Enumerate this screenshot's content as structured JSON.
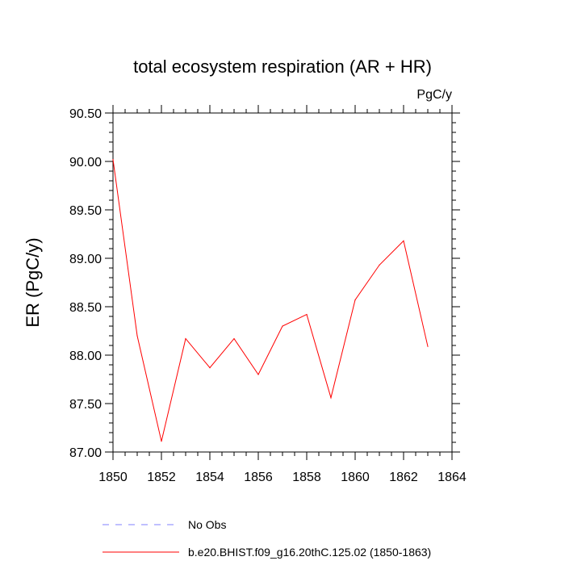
{
  "chart_data": {
    "type": "line",
    "title": "total ecosystem respiration (AR + HR)",
    "units": "PgC/y",
    "xlabel": "",
    "ylabel": "ER  (PgC/y)",
    "xlim": [
      1850,
      1864
    ],
    "ylim": [
      87.0,
      90.5
    ],
    "x_ticks": [
      1850,
      1852,
      1854,
      1856,
      1858,
      1860,
      1862,
      1864
    ],
    "x_tick_labels": [
      "1850",
      "1852",
      "1854",
      "1856",
      "1858",
      "1860",
      "1862",
      "1864"
    ],
    "y_ticks": [
      87.0,
      87.5,
      88.0,
      88.5,
      89.0,
      89.5,
      90.0,
      90.5
    ],
    "y_tick_labels": [
      "87.00",
      "87.50",
      "88.00",
      "88.50",
      "89.00",
      "89.50",
      "90.00",
      "90.50"
    ],
    "grid": false,
    "series": [
      {
        "name": "b.e20.BHIST.f09_g16.20thC.125.02 (1850-1863)",
        "color": "#ff0000",
        "style": "solid",
        "x": [
          1850,
          1851,
          1852,
          1853,
          1854,
          1855,
          1856,
          1857,
          1858,
          1859,
          1860,
          1861,
          1862,
          1863
        ],
        "y": [
          90.02,
          88.2,
          87.11,
          88.17,
          87.87,
          88.17,
          87.8,
          88.3,
          88.42,
          87.56,
          88.57,
          88.93,
          89.18,
          88.09
        ]
      }
    ],
    "legend": {
      "placement": "bottom-center",
      "entries": [
        {
          "label": "No Obs",
          "color": "#8080ff",
          "style": "dashed"
        },
        {
          "label": "b.e20.BHIST.f09_g16.20thC.125.02 (1850-1863)",
          "color": "#ff0000",
          "style": "solid"
        }
      ]
    }
  }
}
